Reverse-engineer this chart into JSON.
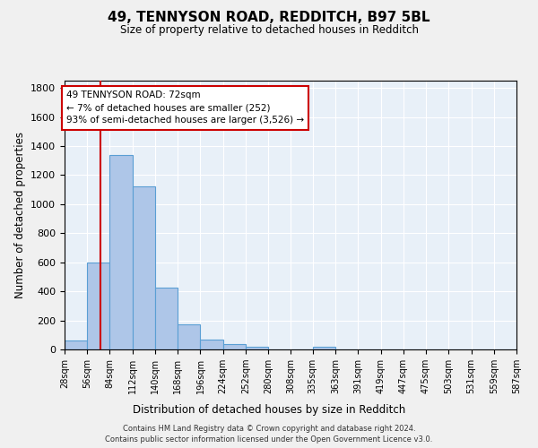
{
  "title1": "49, TENNYSON ROAD, REDDITCH, B97 5BL",
  "title2": "Size of property relative to detached houses in Redditch",
  "xlabel": "Distribution of detached houses by size in Redditch",
  "ylabel": "Number of detached properties",
  "footer": "Contains HM Land Registry data © Crown copyright and database right 2024.\nContains public sector information licensed under the Open Government Licence v3.0.",
  "bin_labels": [
    "28sqm",
    "56sqm",
    "84sqm",
    "112sqm",
    "140sqm",
    "168sqm",
    "196sqm",
    "224sqm",
    "252sqm",
    "280sqm",
    "308sqm",
    "335sqm",
    "363sqm",
    "391sqm",
    "419sqm",
    "447sqm",
    "475sqm",
    "503sqm",
    "531sqm",
    "559sqm",
    "587sqm"
  ],
  "bin_edges": [
    28,
    56,
    84,
    112,
    140,
    168,
    196,
    224,
    252,
    280,
    308,
    335,
    363,
    391,
    419,
    447,
    475,
    503,
    531,
    559,
    587
  ],
  "bar_heights": [
    60,
    600,
    1340,
    1120,
    425,
    170,
    65,
    38,
    20,
    0,
    0,
    20,
    0,
    0,
    0,
    0,
    0,
    0,
    0,
    0
  ],
  "bar_color": "#aec6e8",
  "bar_edge_color": "#5a9fd4",
  "vline_x": 72,
  "vline_color": "#cc0000",
  "ylim": [
    0,
    1850
  ],
  "yticks": [
    0,
    200,
    400,
    600,
    800,
    1000,
    1200,
    1400,
    1600,
    1800
  ],
  "annotation_text": "49 TENNYSON ROAD: 72sqm\n← 7% of detached houses are smaller (252)\n93% of semi-detached houses are larger (3,526) →",
  "annotation_box_color": "#ffffff",
  "annotation_box_edge": "#cc0000",
  "bg_color": "#e8f0f8",
  "grid_color": "#ffffff",
  "fig_bg_color": "#f0f0f0"
}
